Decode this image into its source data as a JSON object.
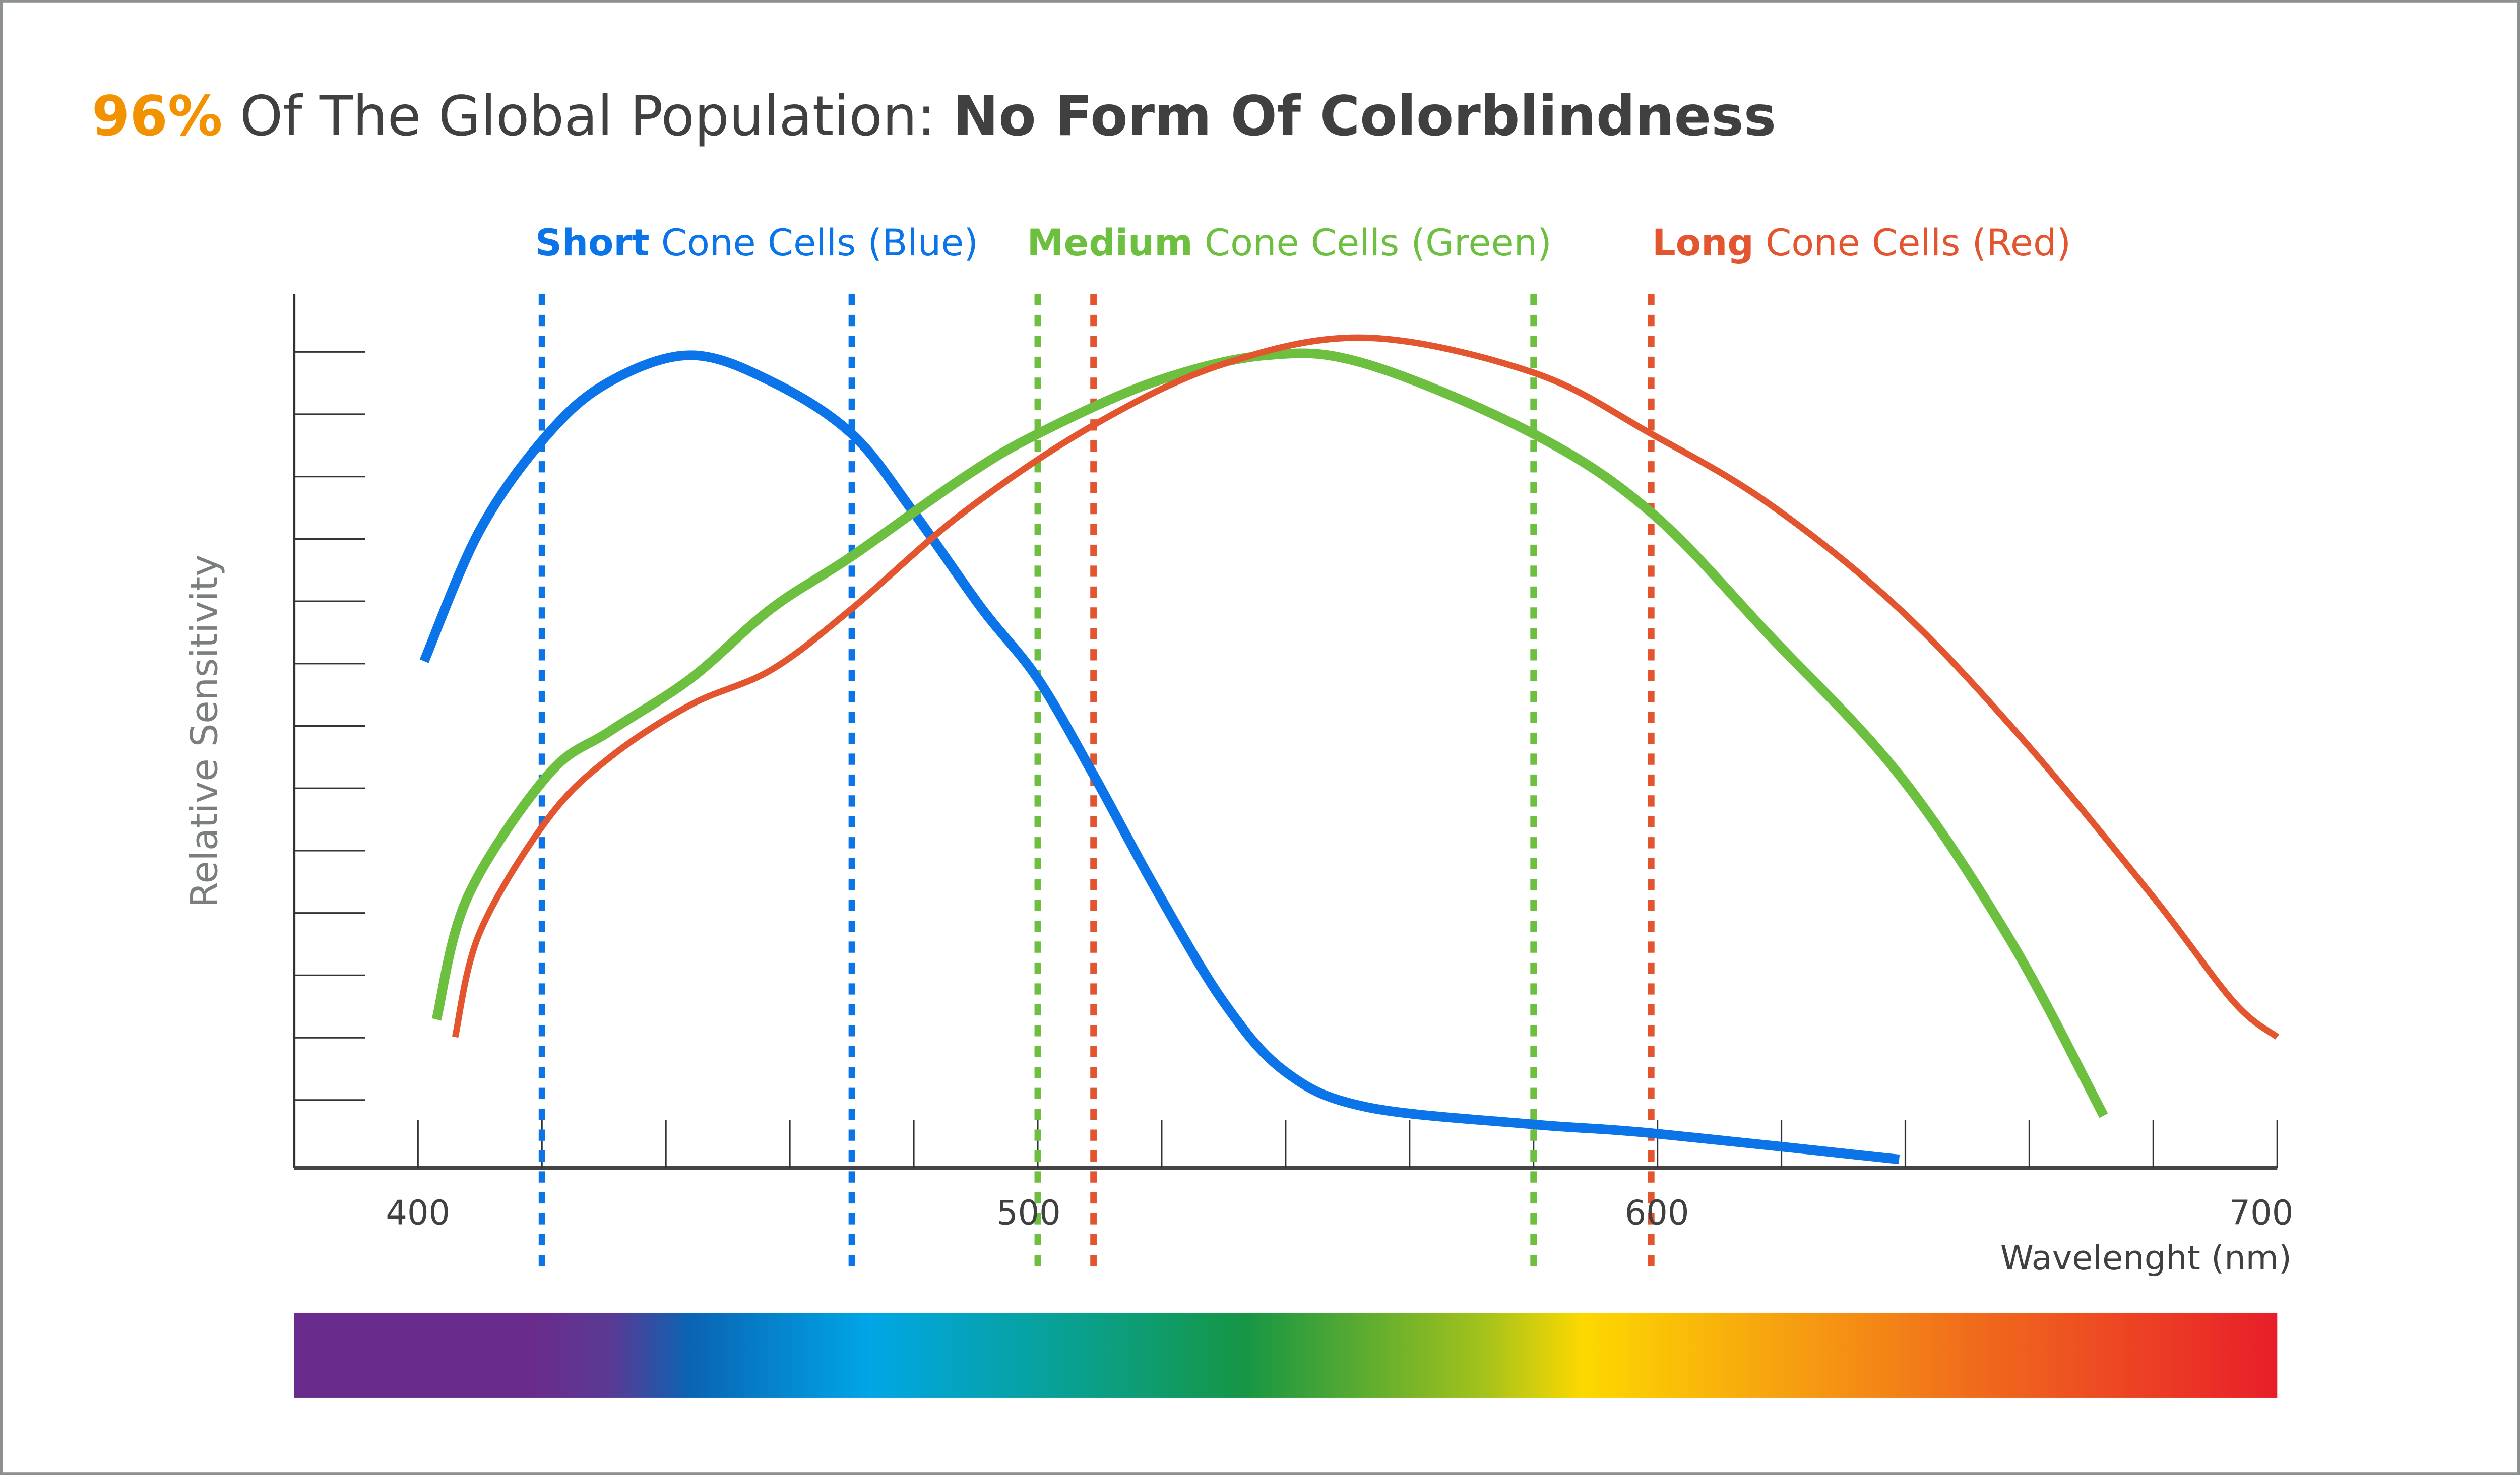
{
  "title": {
    "highlight": "96%",
    "middle": " Of The Global Population: ",
    "bold": "No Form Of Colorblindness",
    "highlight_color": "#f39200",
    "text_color": "#404040"
  },
  "legend": [
    {
      "bold": "Short",
      "rest": " Cone Cells (Blue)",
      "color": "#0a74e8"
    },
    {
      "bold": "Medium",
      "rest": " Cone Cells (Green)",
      "color": "#6cbf3f"
    },
    {
      "bold": "Long",
      "rest": " Cone Cells (Red)",
      "color": "#e2552f"
    }
  ],
  "chart_data": {
    "type": "line",
    "title": "96% Of The Global Population: No Form Of Colorblindness",
    "xlabel": "Wavelenght (nm)",
    "ylabel": "Relative Sensitivity",
    "xlim": [
      380,
      700
    ],
    "ylim": [
      0,
      1
    ],
    "x_tick_labels": [
      "400",
      "500",
      "600",
      "700"
    ],
    "x_tick_values": [
      400,
      500,
      600,
      700
    ],
    "x_minor_tick_step": 20,
    "y_tick_count": 13,
    "y_tick_labels_shown": false,
    "grid": false,
    "legend_position": "top",
    "series": [
      {
        "name": "Short Cone Cells (Blue)",
        "color": "#0a74e8",
        "x": [
          401,
          410,
          421,
          431,
          444,
          457,
          470,
          480,
          491,
          500,
          509,
          519,
          530,
          540,
          553,
          580,
          599,
          639
        ],
        "y": [
          0.58,
          0.73,
          0.84,
          0.9,
          0.93,
          0.9,
          0.84,
          0.75,
          0.64,
          0.56,
          0.45,
          0.32,
          0.19,
          0.11,
          0.07,
          0.05,
          0.04,
          0.01
        ],
        "markers": [
          420,
          470
        ]
      },
      {
        "name": "Medium Cone Cells (Green)",
        "color": "#6cbf3f",
        "x": [
          403,
          408,
          421,
          431,
          444,
          457,
          470,
          488,
          500,
          519,
          537,
          553,
          580,
          599,
          618,
          639,
          657,
          672
        ],
        "y": [
          0.17,
          0.31,
          0.45,
          0.5,
          0.56,
          0.64,
          0.7,
          0.79,
          0.84,
          0.9,
          0.93,
          0.92,
          0.84,
          0.75,
          0.61,
          0.45,
          0.26,
          0.06
        ],
        "markers": [
          500,
          580
        ]
      },
      {
        "name": "Long Cone Cells (Red)",
        "color": "#e2552f",
        "x": [
          406,
          410,
          421,
          431,
          444,
          457,
          470,
          488,
          509,
          530,
          553,
          580,
          599,
          618,
          639,
          659,
          680,
          693,
          700
        ],
        "y": [
          0.15,
          0.27,
          0.4,
          0.47,
          0.53,
          0.57,
          0.64,
          0.75,
          0.85,
          0.92,
          0.95,
          0.91,
          0.84,
          0.76,
          0.64,
          0.49,
          0.31,
          0.19,
          0.15
        ],
        "markers": [
          509,
          599
        ]
      }
    ],
    "spectrum_bar": true
  }
}
